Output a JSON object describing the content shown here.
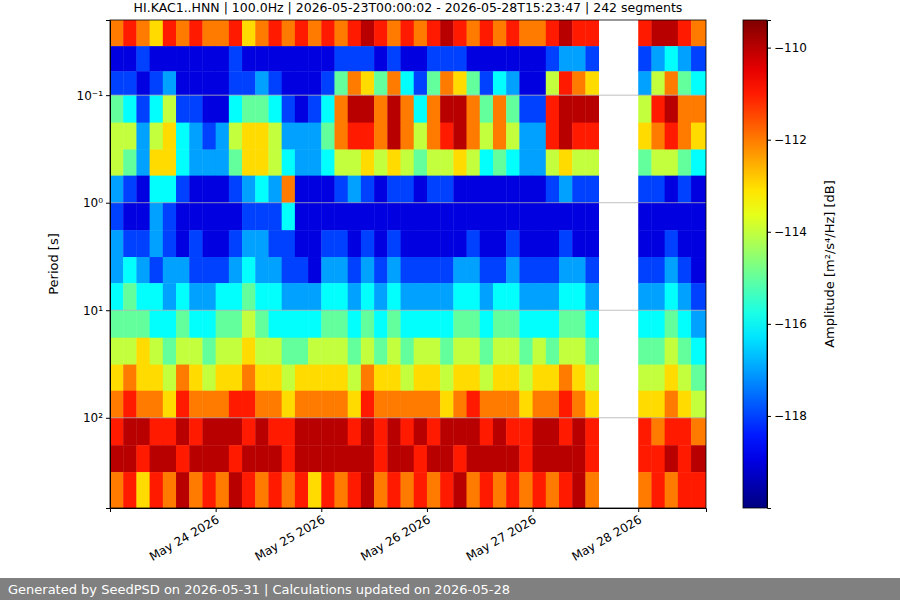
{
  "chart_data": {
    "type": "heatmap",
    "title": "HI.KAC1..HNN | 100.0Hz | 2026-05-23T00:00:02 - 2026-05-28T15:23:47 | 242 segments",
    "y_label": "Period [s]",
    "footer": "Generated by SeedPSD on 2026-05-31 | Calculations updated on 2026-05-28",
    "log": "y",
    "grid": true,
    "xlim": [
      "2026-05-23T00:00:02",
      "2026-05-28T15:23:47"
    ],
    "xticks": [
      {
        "value": "2026-05-24T00:00:00",
        "label": "May 24 2026"
      },
      {
        "value": "2026-05-25T00:00:00",
        "label": "May 25 2026"
      },
      {
        "value": "2026-05-26T00:00:00",
        "label": "May 26 2026"
      },
      {
        "value": "2026-05-27T00:00:00",
        "label": "May 27 2026"
      },
      {
        "value": "2026-05-28T00:00:00",
        "label": "May 28 2026"
      }
    ],
    "ylim": [
      0.02,
      690
    ],
    "yticks": [
      {
        "value": 0.1,
        "label": "10⁻¹"
      },
      {
        "value": 1,
        "label": "10⁰"
      },
      {
        "value": 10,
        "label": "10¹"
      },
      {
        "value": 100,
        "label": "10²"
      }
    ],
    "x_edges": [
      "2026-05-23T00:00:02",
      "2026-05-23T03:00:00",
      "2026-05-23T06:00:00",
      "2026-05-23T09:00:00",
      "2026-05-23T12:00:00",
      "2026-05-23T15:00:00",
      "2026-05-23T18:00:00",
      "2026-05-23T21:00:00",
      "2026-05-24T00:00:00",
      "2026-05-24T03:00:00",
      "2026-05-24T06:00:00",
      "2026-05-24T09:00:00",
      "2026-05-24T12:00:00",
      "2026-05-24T15:00:00",
      "2026-05-24T18:00:00",
      "2026-05-24T21:00:00",
      "2026-05-25T00:00:00",
      "2026-05-25T03:00:00",
      "2026-05-25T06:00:00",
      "2026-05-25T09:00:00",
      "2026-05-25T12:00:00",
      "2026-05-25T15:00:00",
      "2026-05-25T18:00:00",
      "2026-05-25T21:00:00",
      "2026-05-26T00:00:00",
      "2026-05-26T03:00:00",
      "2026-05-26T06:00:00",
      "2026-05-26T09:00:00",
      "2026-05-26T12:00:00",
      "2026-05-26T15:00:00",
      "2026-05-26T18:00:00",
      "2026-05-26T21:00:00",
      "2026-05-27T00:00:00",
      "2026-05-27T03:00:00",
      "2026-05-27T06:00:00",
      "2026-05-27T09:00:00",
      "2026-05-27T12:00:00",
      "2026-05-27T15:00:00",
      "2026-05-27T18:00:00",
      "2026-05-27T21:00:00",
      "2026-05-28T00:00:00",
      "2026-05-28T03:00:00",
      "2026-05-28T06:00:00",
      "2026-05-28T09:00:00",
      "2026-05-28T12:00:00",
      "2026-05-28T15:23:47"
    ],
    "y_edges": [
      0.02,
      0.035,
      0.06,
      0.1,
      0.18,
      0.32,
      0.56,
      1,
      1.8,
      3.2,
      5.6,
      10,
      18,
      32,
      56,
      100,
      180,
      320,
      690
    ],
    "values": [
      [
        -112,
        -111,
        -112,
        -113,
        -111,
        -112,
        -111,
        -112,
        -112,
        -111,
        -113,
        -112,
        -111,
        -112,
        -111,
        -112,
        -111,
        -112,
        -111,
        -110,
        -111,
        -112,
        -111,
        -112,
        -111,
        -110,
        -111,
        -112,
        -111,
        -112,
        -111,
        -112,
        -112,
        -111,
        -110,
        -111,
        -111,
        null,
        null,
        null,
        -111,
        -110,
        -110,
        -111,
        -112
      ],
      [
        -119,
        -119,
        -118,
        -119,
        -119,
        -119,
        -119,
        -119,
        -119,
        -118,
        -119,
        -119,
        -119,
        -119,
        -119,
        -119,
        -119,
        -118,
        -118,
        -118,
        -119,
        -118,
        -119,
        -119,
        -118,
        -118,
        -118,
        -119,
        -119,
        -119,
        -119,
        -119,
        -119,
        -118,
        -117,
        -117,
        -118,
        null,
        null,
        null,
        -118,
        -117,
        -116,
        -117,
        -118
      ],
      [
        -118,
        -118,
        -119,
        -118,
        -117,
        -119,
        -119,
        -119,
        -119,
        -118,
        -118,
        -117,
        -118,
        -119,
        -119,
        -119,
        -118,
        -115,
        -112,
        -113,
        -115,
        -112,
        -116,
        -118,
        -115,
        -112,
        -113,
        -115,
        -118,
        -116,
        -117,
        -119,
        -119,
        -114,
        -111,
        -112,
        -113,
        null,
        null,
        null,
        -117,
        -114,
        -112,
        -115,
        -116
      ],
      [
        -115,
        -116,
        -118,
        -116,
        -114,
        -118,
        -118,
        -119,
        -119,
        -116,
        -115,
        -115,
        -116,
        -118,
        -119,
        -118,
        -116,
        -112,
        -110,
        -110,
        -112,
        -110,
        -112,
        -116,
        -112,
        -110,
        -110,
        -112,
        -115,
        -112,
        -115,
        -118,
        -118,
        -111,
        -110,
        -110,
        -110,
        null,
        null,
        null,
        -114,
        -111,
        -110,
        -112,
        -112
      ],
      [
        -114,
        -114,
        -117,
        -114,
        -113,
        -116,
        -117,
        -118,
        -117,
        -114,
        -113,
        -113,
        -114,
        -117,
        -117,
        -117,
        -115,
        -112,
        -111,
        -111,
        -112,
        -110,
        -112,
        -114,
        -112,
        -111,
        -110,
        -112,
        -114,
        -112,
        -114,
        -117,
        -117,
        -111,
        -110,
        -111,
        -111,
        null,
        null,
        null,
        -113,
        -112,
        -111,
        -112,
        -113
      ],
      [
        -114,
        -115,
        -117,
        -113,
        -113,
        -116,
        -117,
        -117,
        -117,
        -115,
        -113,
        -113,
        -114,
        -116,
        -117,
        -117,
        -116,
        -114,
        -114,
        -113,
        -114,
        -113,
        -114,
        -115,
        -114,
        -114,
        -113,
        -114,
        -116,
        -115,
        -116,
        -117,
        -117,
        -114,
        -113,
        -114,
        -114,
        null,
        null,
        null,
        -115,
        -114,
        -114,
        -115,
        -116
      ],
      [
        -117,
        -118,
        -119,
        -116,
        -116,
        -118,
        -119,
        -119,
        -119,
        -118,
        -117,
        -116,
        -117,
        -112,
        -119,
        -119,
        -119,
        -118,
        -117,
        -118,
        -119,
        -118,
        -118,
        -119,
        -118,
        -118,
        -119,
        -119,
        -119,
        -119,
        -119,
        -119,
        -119,
        -118,
        -117,
        -118,
        -118,
        null,
        null,
        null,
        -118,
        -118,
        -119,
        -118,
        -119
      ],
      [
        -118,
        -119,
        -119,
        -117,
        -118,
        -119,
        -119,
        -119,
        -119,
        -119,
        -118,
        -118,
        -118,
        -116,
        -119,
        -119,
        -119,
        -119,
        -119,
        -119,
        -119,
        -119,
        -119,
        -119,
        -119,
        -119,
        -119,
        -119,
        -119,
        -119,
        -119,
        -119,
        -119,
        -119,
        -119,
        -119,
        -119,
        null,
        null,
        null,
        -119,
        -119,
        -119,
        -119,
        -119
      ],
      [
        -117,
        -118,
        -118,
        -117,
        -118,
        -119,
        -118,
        -119,
        -119,
        -118,
        -117,
        -117,
        -118,
        -118,
        -119,
        -119,
        -118,
        -118,
        -119,
        -118,
        -119,
        -118,
        -119,
        -119,
        -119,
        -119,
        -119,
        -118,
        -119,
        -119,
        -118,
        -119,
        -119,
        -119,
        -118,
        -119,
        -119,
        null,
        null,
        null,
        -119,
        -119,
        -118,
        -119,
        -119
      ],
      [
        -117,
        -116,
        -117,
        -118,
        -117,
        -117,
        -118,
        -118,
        -118,
        -117,
        -116,
        -117,
        -117,
        -118,
        -118,
        -119,
        -117,
        -117,
        -118,
        -117,
        -118,
        -117,
        -118,
        -118,
        -118,
        -118,
        -117,
        -117,
        -118,
        -118,
        -117,
        -118,
        -118,
        -118,
        -117,
        -117,
        -118,
        null,
        null,
        null,
        -118,
        -118,
        -117,
        -118,
        -119
      ],
      [
        -116,
        -115,
        -116,
        -116,
        -117,
        -116,
        -117,
        -117,
        -116,
        -116,
        -115,
        -116,
        -116,
        -117,
        -117,
        -117,
        -116,
        -116,
        -117,
        -116,
        -117,
        -116,
        -117,
        -117,
        -117,
        -117,
        -116,
        -116,
        -117,
        -116,
        -116,
        -117,
        -117,
        -117,
        -116,
        -116,
        -117,
        null,
        null,
        null,
        -117,
        -117,
        -116,
        -117,
        -118
      ],
      [
        -115,
        -115,
        -115,
        -116,
        -116,
        -115,
        -116,
        -116,
        -115,
        -115,
        -114,
        -115,
        -116,
        -116,
        -116,
        -116,
        -115,
        -115,
        -116,
        -115,
        -116,
        -115,
        -116,
        -116,
        -116,
        -116,
        -115,
        -115,
        -116,
        -115,
        -115,
        -116,
        -116,
        -116,
        -115,
        -115,
        -116,
        null,
        null,
        null,
        -116,
        -116,
        -115,
        -116,
        -117
      ],
      [
        -114,
        -114,
        -113,
        -114,
        -115,
        -114,
        -114,
        -115,
        -114,
        -114,
        -113,
        -114,
        -114,
        -115,
        -115,
        -114,
        -114,
        -114,
        -115,
        -114,
        -115,
        -114,
        -115,
        -114,
        -114,
        -115,
        -114,
        -114,
        -115,
        -114,
        -114,
        -115,
        -114,
        -115,
        -114,
        -114,
        -115,
        null,
        null,
        null,
        -115,
        -115,
        -114,
        -115,
        -116
      ],
      [
        -113,
        -112,
        -113,
        -113,
        -114,
        -112,
        -113,
        -114,
        -113,
        -113,
        -112,
        -113,
        -113,
        -114,
        -113,
        -113,
        -113,
        -113,
        -114,
        -112,
        -113,
        -113,
        -114,
        -113,
        -113,
        -114,
        -113,
        -113,
        -114,
        -113,
        -113,
        -114,
        -113,
        -113,
        -112,
        -113,
        -114,
        null,
        null,
        null,
        -114,
        -114,
        -113,
        -114,
        -115
      ],
      [
        -112,
        -111,
        -112,
        -112,
        -113,
        -111,
        -112,
        -112,
        -112,
        -111,
        -111,
        -112,
        -112,
        -113,
        -112,
        -112,
        -112,
        -112,
        -113,
        -111,
        -112,
        -112,
        -112,
        -112,
        -112,
        -113,
        -112,
        -111,
        -112,
        -112,
        -112,
        -113,
        -112,
        -112,
        -111,
        -112,
        -113,
        null,
        null,
        null,
        -113,
        -113,
        -112,
        -113,
        -114
      ],
      [
        -111,
        -110,
        -110,
        -111,
        -111,
        -110,
        -111,
        -110,
        -110,
        -110,
        -111,
        -110,
        -111,
        -111,
        -110,
        -110,
        -110,
        -110,
        -111,
        -110,
        -111,
        -110,
        -111,
        -110,
        -111,
        -110,
        -110,
        -110,
        -111,
        -110,
        -111,
        -111,
        -110,
        -110,
        -111,
        -110,
        -111,
        null,
        null,
        null,
        -111,
        -112,
        -111,
        -111,
        -112
      ],
      [
        -110,
        -110,
        -111,
        -110,
        -110,
        -111,
        -110,
        -110,
        -110,
        -111,
        -110,
        -110,
        -110,
        -111,
        -110,
        -110,
        -110,
        -110,
        -110,
        -110,
        -111,
        -110,
        -110,
        -111,
        -110,
        -110,
        -111,
        -110,
        -110,
        -110,
        -110,
        -111,
        -110,
        -110,
        -110,
        -110,
        -111,
        null,
        null,
        null,
        -111,
        -111,
        -110,
        -111,
        -110
      ],
      [
        -112,
        -111,
        -113,
        -111,
        -112,
        -110,
        -112,
        -111,
        -112,
        -110,
        -111,
        -112,
        -111,
        -112,
        -111,
        -113,
        -111,
        -112,
        -111,
        -110,
        -112,
        -111,
        -112,
        -111,
        -112,
        -111,
        -110,
        -112,
        -111,
        -112,
        -111,
        -112,
        -111,
        -112,
        -111,
        -110,
        -112,
        null,
        null,
        null,
        -112,
        -111,
        -112,
        -111,
        -111
      ]
    ],
    "colorbar": {
      "label": "Amplitude [m²/s⁴/Hz] [dB]",
      "lim": [
        -120,
        -109.4
      ],
      "ticks": [
        {
          "value": -110,
          "label": "−110"
        },
        {
          "value": -112,
          "label": "−112"
        },
        {
          "value": -114,
          "label": "−114"
        },
        {
          "value": -116,
          "label": "−116"
        },
        {
          "value": -118,
          "label": "−118"
        }
      ]
    }
  }
}
